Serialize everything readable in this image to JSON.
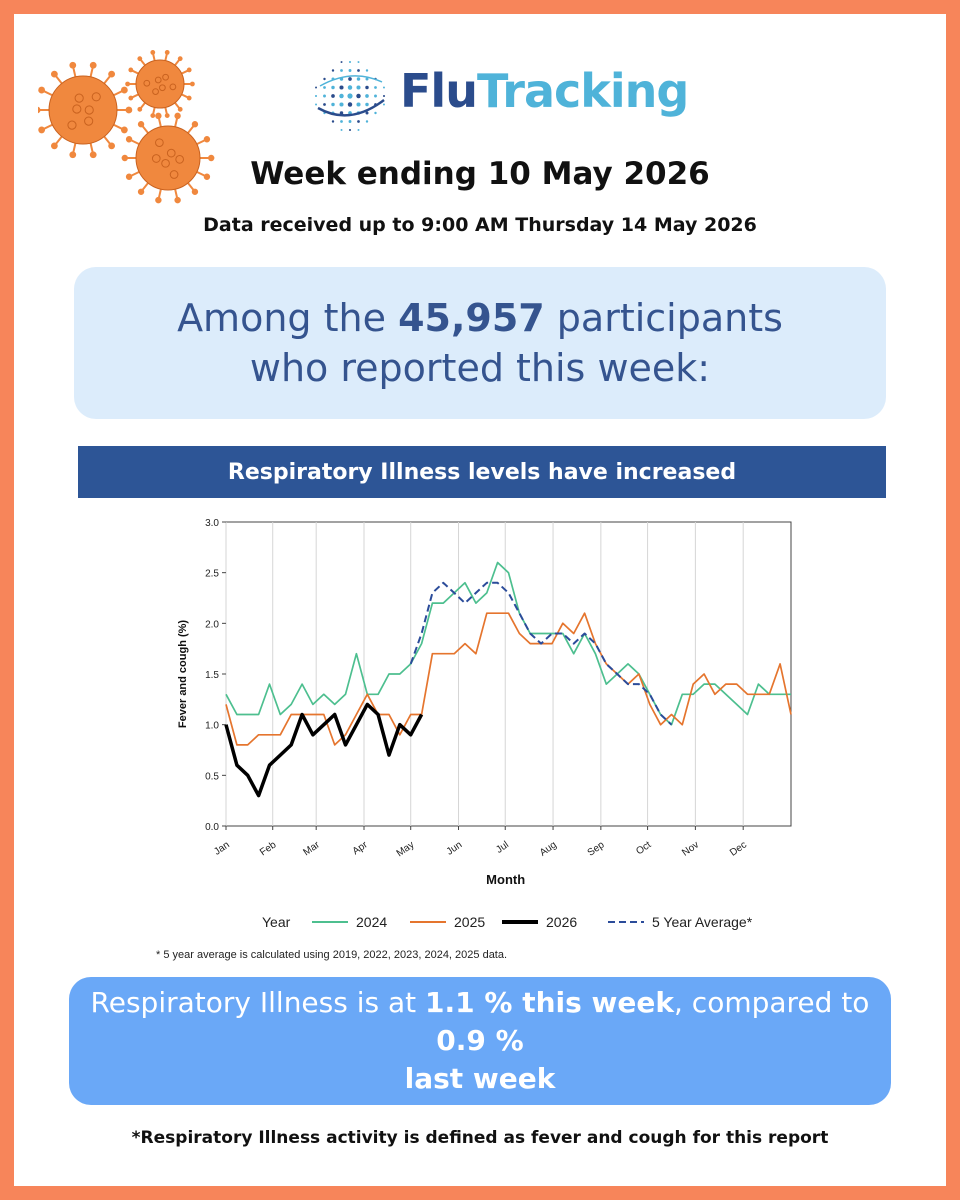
{
  "logo": {
    "part1": "Flu",
    "part2": "Tracking"
  },
  "header": {
    "week_title": "Week ending 10 May 2026",
    "data_received": "Data received up to 9:00 AM Thursday 14 May 2026"
  },
  "summary": {
    "prefix": "Among the ",
    "participants": "45,957",
    "suffix": " participants who reported this week:"
  },
  "banner": {
    "text": "Respiratory Illness levels have increased"
  },
  "result": {
    "prefix": "Respiratory Illness is at ",
    "this_week": "1.1 % this week",
    "middle": ", compared to ",
    "last_week_value": "0.9 %",
    "last_week_label": "last week"
  },
  "footnotes": {
    "average": "* 5 year average is calculated using 2019, 2022, 2023, 2024, 2025 data.",
    "definition": "*Respiratory Illness activity is defined as fever and cough for this report"
  },
  "colors": {
    "frame": "#f7855a",
    "virus": "#f0883e",
    "brand_dark": "#2b4c8c",
    "brand_light": "#4fb3d9",
    "summary_bg": "#dcecfb",
    "banner_bg": "#2d5596",
    "result_bg": "#6aa8f7"
  },
  "icons": [
    "virus-icon",
    "flutracking-globe-logo"
  ],
  "chart_data": {
    "type": "line",
    "title": "",
    "xlabel": "Month",
    "ylabel": "Fever and cough (%)",
    "ylim": [
      0,
      3.0
    ],
    "yticks": [
      "0.0",
      "0.5",
      "1.0",
      "1.5",
      "2.0",
      "2.5",
      "3.0"
    ],
    "xlim": [
      1,
      53
    ],
    "x_ticks": [
      {
        "label": "Jan",
        "week": 1
      },
      {
        "label": "Feb",
        "week": 5.3
      },
      {
        "label": "Mar",
        "week": 9.3
      },
      {
        "label": "Apr",
        "week": 13.7
      },
      {
        "label": "May",
        "week": 18
      },
      {
        "label": "Jun",
        "week": 22.4
      },
      {
        "label": "Jul",
        "week": 26.7
      },
      {
        "label": "Aug",
        "week": 31.1
      },
      {
        "label": "Sep",
        "week": 35.5
      },
      {
        "label": "Oct",
        "week": 39.8
      },
      {
        "label": "Nov",
        "week": 44.2
      },
      {
        "label": "Dec",
        "week": 48.6
      }
    ],
    "grid": "vertical",
    "legend_title": "Year",
    "legend_position": "bottom",
    "series": [
      {
        "name": "2024",
        "color": "#4dbf8f",
        "style": "solid",
        "x": [
          1,
          2,
          3,
          4,
          5,
          6,
          7,
          8,
          9,
          10,
          11,
          12,
          13,
          14,
          15,
          16,
          17,
          18,
          19,
          20,
          21,
          22,
          23,
          24,
          25,
          26,
          27,
          28,
          29,
          30,
          31,
          32,
          33,
          34,
          35,
          36,
          37,
          38,
          39,
          40,
          41,
          42,
          43,
          44,
          45,
          46,
          47,
          48,
          49,
          50,
          51,
          52,
          53
        ],
        "y": [
          1.3,
          1.1,
          1.1,
          1.1,
          1.4,
          1.1,
          1.2,
          1.4,
          1.2,
          1.3,
          1.2,
          1.3,
          1.7,
          1.3,
          1.3,
          1.5,
          1.5,
          1.6,
          1.8,
          2.2,
          2.2,
          2.3,
          2.4,
          2.2,
          2.3,
          2.6,
          2.5,
          2.1,
          1.9,
          1.9,
          1.9,
          1.9,
          1.7,
          1.9,
          1.7,
          1.4,
          1.5,
          1.6,
          1.5,
          1.3,
          1.1,
          1.0,
          1.3,
          1.3,
          1.4,
          1.4,
          1.3,
          1.2,
          1.1,
          1.4,
          1.3,
          1.3,
          1.3
        ]
      },
      {
        "name": "2025",
        "color": "#e5752e",
        "style": "solid",
        "x": [
          1,
          2,
          3,
          4,
          5,
          6,
          7,
          8,
          9,
          10,
          11,
          12,
          13,
          14,
          15,
          16,
          17,
          18,
          19,
          20,
          21,
          22,
          23,
          24,
          25,
          26,
          27,
          28,
          29,
          30,
          31,
          32,
          33,
          34,
          35,
          36,
          37,
          38,
          39,
          40,
          41,
          42,
          43,
          44,
          45,
          46,
          47,
          48,
          49,
          50,
          51,
          52,
          53
        ],
        "y": [
          1.2,
          0.8,
          0.8,
          0.9,
          0.9,
          0.9,
          1.1,
          1.1,
          1.1,
          1.1,
          0.8,
          0.9,
          1.1,
          1.3,
          1.1,
          1.1,
          0.9,
          1.1,
          1.1,
          1.7,
          1.7,
          1.7,
          1.8,
          1.7,
          2.1,
          2.1,
          2.1,
          1.9,
          1.8,
          1.8,
          1.8,
          2.0,
          1.9,
          2.1,
          1.8,
          1.6,
          1.5,
          1.4,
          1.5,
          1.2,
          1.0,
          1.1,
          1.0,
          1.4,
          1.5,
          1.3,
          1.4,
          1.4,
          1.3,
          1.3,
          1.3,
          1.6,
          1.1
        ]
      },
      {
        "name": "2026",
        "color": "#000000",
        "style": "thick",
        "x": [
          1,
          2,
          3,
          4,
          5,
          6,
          7,
          8,
          9,
          10,
          11,
          12,
          13,
          14,
          15,
          16,
          17,
          18,
          19
        ],
        "y": [
          1.0,
          0.6,
          0.5,
          0.3,
          0.6,
          0.7,
          0.8,
          1.1,
          0.9,
          1.0,
          1.1,
          0.8,
          1.0,
          1.2,
          1.1,
          0.7,
          1.0,
          0.9,
          1.1
        ]
      },
      {
        "name": "5 Year Average*",
        "color": "#2b4c9a",
        "style": "dashed",
        "x": [
          18,
          19,
          20,
          21,
          22,
          23,
          24,
          25,
          26,
          27,
          28,
          29,
          30,
          31,
          32,
          33,
          34,
          35,
          36,
          37,
          38,
          39,
          40,
          41,
          42
        ],
        "y": [
          1.6,
          1.9,
          2.3,
          2.4,
          2.3,
          2.2,
          2.3,
          2.4,
          2.4,
          2.3,
          2.1,
          1.9,
          1.8,
          1.9,
          1.9,
          1.8,
          1.9,
          1.8,
          1.6,
          1.5,
          1.4,
          1.4,
          1.3,
          1.1,
          1.0
        ]
      }
    ]
  }
}
